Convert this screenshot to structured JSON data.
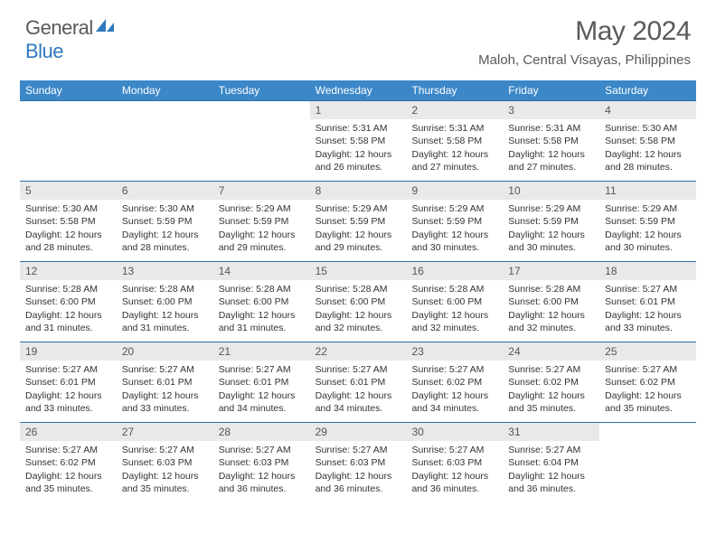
{
  "brand": {
    "part1": "General",
    "part2": "Blue"
  },
  "title": "May 2024",
  "location": "Maloh, Central Visayas, Philippines",
  "colors": {
    "header_bg": "#3b87c8",
    "header_text": "#ffffff",
    "daynum_bg": "#e9e9e9",
    "week_border": "#2f6fa8",
    "text_dark": "#333333",
    "text_muted": "#5a5a5a",
    "brand_blue": "#2f78bd"
  },
  "typography": {
    "title_fontsize": 30,
    "location_fontsize": 15,
    "dayhead_fontsize": 12,
    "daynum_fontsize": 12,
    "body_fontsize": 10.5
  },
  "day_headers": [
    "Sunday",
    "Monday",
    "Tuesday",
    "Wednesday",
    "Thursday",
    "Friday",
    "Saturday"
  ],
  "weeks": [
    [
      {
        "num": "",
        "sunrise": "",
        "sunset": "",
        "daylight": ""
      },
      {
        "num": "",
        "sunrise": "",
        "sunset": "",
        "daylight": ""
      },
      {
        "num": "",
        "sunrise": "",
        "sunset": "",
        "daylight": ""
      },
      {
        "num": "1",
        "sunrise": "Sunrise: 5:31 AM",
        "sunset": "Sunset: 5:58 PM",
        "daylight": "Daylight: 12 hours and 26 minutes."
      },
      {
        "num": "2",
        "sunrise": "Sunrise: 5:31 AM",
        "sunset": "Sunset: 5:58 PM",
        "daylight": "Daylight: 12 hours and 27 minutes."
      },
      {
        "num": "3",
        "sunrise": "Sunrise: 5:31 AM",
        "sunset": "Sunset: 5:58 PM",
        "daylight": "Daylight: 12 hours and 27 minutes."
      },
      {
        "num": "4",
        "sunrise": "Sunrise: 5:30 AM",
        "sunset": "Sunset: 5:58 PM",
        "daylight": "Daylight: 12 hours and 28 minutes."
      }
    ],
    [
      {
        "num": "5",
        "sunrise": "Sunrise: 5:30 AM",
        "sunset": "Sunset: 5:58 PM",
        "daylight": "Daylight: 12 hours and 28 minutes."
      },
      {
        "num": "6",
        "sunrise": "Sunrise: 5:30 AM",
        "sunset": "Sunset: 5:59 PM",
        "daylight": "Daylight: 12 hours and 28 minutes."
      },
      {
        "num": "7",
        "sunrise": "Sunrise: 5:29 AM",
        "sunset": "Sunset: 5:59 PM",
        "daylight": "Daylight: 12 hours and 29 minutes."
      },
      {
        "num": "8",
        "sunrise": "Sunrise: 5:29 AM",
        "sunset": "Sunset: 5:59 PM",
        "daylight": "Daylight: 12 hours and 29 minutes."
      },
      {
        "num": "9",
        "sunrise": "Sunrise: 5:29 AM",
        "sunset": "Sunset: 5:59 PM",
        "daylight": "Daylight: 12 hours and 30 minutes."
      },
      {
        "num": "10",
        "sunrise": "Sunrise: 5:29 AM",
        "sunset": "Sunset: 5:59 PM",
        "daylight": "Daylight: 12 hours and 30 minutes."
      },
      {
        "num": "11",
        "sunrise": "Sunrise: 5:29 AM",
        "sunset": "Sunset: 5:59 PM",
        "daylight": "Daylight: 12 hours and 30 minutes."
      }
    ],
    [
      {
        "num": "12",
        "sunrise": "Sunrise: 5:28 AM",
        "sunset": "Sunset: 6:00 PM",
        "daylight": "Daylight: 12 hours and 31 minutes."
      },
      {
        "num": "13",
        "sunrise": "Sunrise: 5:28 AM",
        "sunset": "Sunset: 6:00 PM",
        "daylight": "Daylight: 12 hours and 31 minutes."
      },
      {
        "num": "14",
        "sunrise": "Sunrise: 5:28 AM",
        "sunset": "Sunset: 6:00 PM",
        "daylight": "Daylight: 12 hours and 31 minutes."
      },
      {
        "num": "15",
        "sunrise": "Sunrise: 5:28 AM",
        "sunset": "Sunset: 6:00 PM",
        "daylight": "Daylight: 12 hours and 32 minutes."
      },
      {
        "num": "16",
        "sunrise": "Sunrise: 5:28 AM",
        "sunset": "Sunset: 6:00 PM",
        "daylight": "Daylight: 12 hours and 32 minutes."
      },
      {
        "num": "17",
        "sunrise": "Sunrise: 5:28 AM",
        "sunset": "Sunset: 6:00 PM",
        "daylight": "Daylight: 12 hours and 32 minutes."
      },
      {
        "num": "18",
        "sunrise": "Sunrise: 5:27 AM",
        "sunset": "Sunset: 6:01 PM",
        "daylight": "Daylight: 12 hours and 33 minutes."
      }
    ],
    [
      {
        "num": "19",
        "sunrise": "Sunrise: 5:27 AM",
        "sunset": "Sunset: 6:01 PM",
        "daylight": "Daylight: 12 hours and 33 minutes."
      },
      {
        "num": "20",
        "sunrise": "Sunrise: 5:27 AM",
        "sunset": "Sunset: 6:01 PM",
        "daylight": "Daylight: 12 hours and 33 minutes."
      },
      {
        "num": "21",
        "sunrise": "Sunrise: 5:27 AM",
        "sunset": "Sunset: 6:01 PM",
        "daylight": "Daylight: 12 hours and 34 minutes."
      },
      {
        "num": "22",
        "sunrise": "Sunrise: 5:27 AM",
        "sunset": "Sunset: 6:01 PM",
        "daylight": "Daylight: 12 hours and 34 minutes."
      },
      {
        "num": "23",
        "sunrise": "Sunrise: 5:27 AM",
        "sunset": "Sunset: 6:02 PM",
        "daylight": "Daylight: 12 hours and 34 minutes."
      },
      {
        "num": "24",
        "sunrise": "Sunrise: 5:27 AM",
        "sunset": "Sunset: 6:02 PM",
        "daylight": "Daylight: 12 hours and 35 minutes."
      },
      {
        "num": "25",
        "sunrise": "Sunrise: 5:27 AM",
        "sunset": "Sunset: 6:02 PM",
        "daylight": "Daylight: 12 hours and 35 minutes."
      }
    ],
    [
      {
        "num": "26",
        "sunrise": "Sunrise: 5:27 AM",
        "sunset": "Sunset: 6:02 PM",
        "daylight": "Daylight: 12 hours and 35 minutes."
      },
      {
        "num": "27",
        "sunrise": "Sunrise: 5:27 AM",
        "sunset": "Sunset: 6:03 PM",
        "daylight": "Daylight: 12 hours and 35 minutes."
      },
      {
        "num": "28",
        "sunrise": "Sunrise: 5:27 AM",
        "sunset": "Sunset: 6:03 PM",
        "daylight": "Daylight: 12 hours and 36 minutes."
      },
      {
        "num": "29",
        "sunrise": "Sunrise: 5:27 AM",
        "sunset": "Sunset: 6:03 PM",
        "daylight": "Daylight: 12 hours and 36 minutes."
      },
      {
        "num": "30",
        "sunrise": "Sunrise: 5:27 AM",
        "sunset": "Sunset: 6:03 PM",
        "daylight": "Daylight: 12 hours and 36 minutes."
      },
      {
        "num": "31",
        "sunrise": "Sunrise: 5:27 AM",
        "sunset": "Sunset: 6:04 PM",
        "daylight": "Daylight: 12 hours and 36 minutes."
      },
      {
        "num": "",
        "sunrise": "",
        "sunset": "",
        "daylight": ""
      }
    ]
  ]
}
